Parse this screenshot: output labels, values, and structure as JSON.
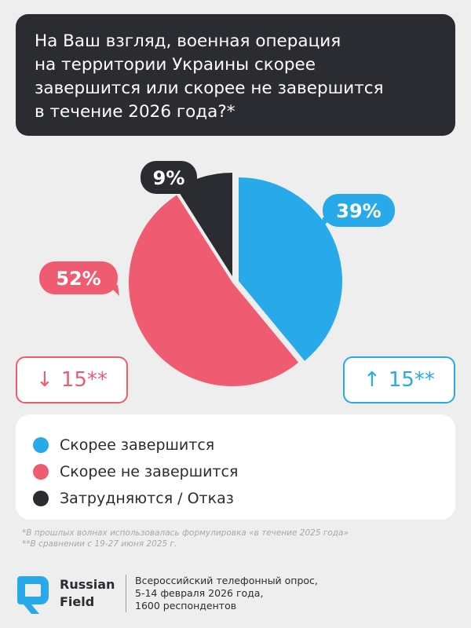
{
  "question": {
    "lines": [
      "На Ваш взгляд, военная операция",
      "на территории Украины скорее",
      "завершится или скорее не завершится",
      "в течение 2026 года?*"
    ]
  },
  "chart_data": {
    "type": "pie",
    "slices": [
      {
        "label": "Скорее завершится",
        "value": 39,
        "display": "39%",
        "color": "#28a9ea"
      },
      {
        "label": "Скорее не завершится",
        "value": 52,
        "display": "52%",
        "color": "#ef5b70"
      },
      {
        "label": "Затрудняются / Отказ",
        "value": 9,
        "display": "9%",
        "color": "#2b2c31"
      }
    ],
    "legend_position": "bottom"
  },
  "deltas": {
    "left": {
      "arrow": "↓",
      "text": "15**",
      "color": "#ef5b70"
    },
    "right": {
      "arrow": "↑",
      "text": "15**",
      "color": "#28a9ea"
    }
  },
  "legend": {
    "items": [
      {
        "label": "Скорее завершится",
        "color": "#28a9ea"
      },
      {
        "label": "Скорее не завершится",
        "color": "#ef5b70"
      },
      {
        "label": "Затрудняются / Отказ",
        "color": "#2b2c31"
      }
    ]
  },
  "footnotes": {
    "note1": "*В прошлых волнах использовалась формулировка «в течение 2025 года»",
    "note2": "**В сравнении с 19-27 июня 2025 г."
  },
  "footer": {
    "brand_line1": "Russian",
    "brand_line2": "Field",
    "info_line1": "Всероссийский телефонный опрос,",
    "info_line2": "5-14 февраля 2026 года,",
    "info_line3": "1600 респондентов"
  }
}
